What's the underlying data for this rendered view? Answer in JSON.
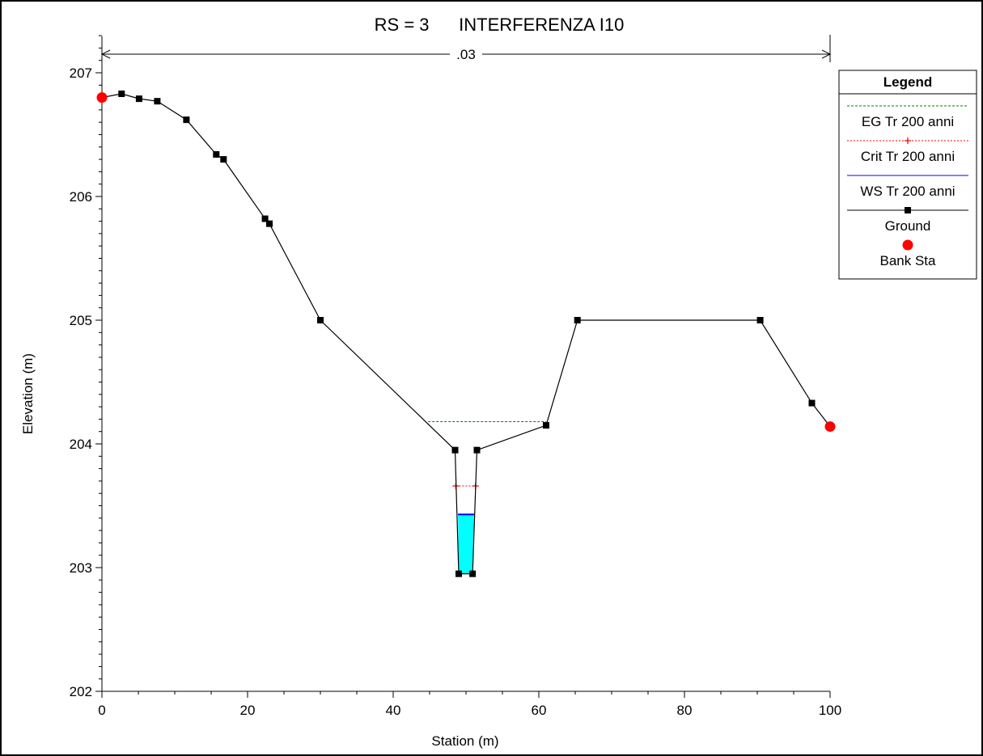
{
  "chart_data": {
    "type": "line",
    "title": "RS = 3      INTERFERENZA I10",
    "xlabel": "Station (m)",
    "ylabel": "Elevation (m)",
    "xlim": [
      0,
      100
    ],
    "ylim": [
      202,
      207.3
    ],
    "x_ticks": [
      0,
      20,
      40,
      60,
      80,
      100
    ],
    "y_ticks": [
      202,
      203,
      204,
      205,
      206,
      207
    ],
    "grid": false,
    "manning_n": {
      "label": ".03",
      "from": 0,
      "to": 100
    },
    "series": [
      {
        "name": "EG Tr 200 anni",
        "color": "#008000",
        "style": "dashed",
        "points": [
          [
            44.8,
            204.18
          ],
          [
            61.0,
            204.18
          ]
        ]
      },
      {
        "name": "Crit Tr 200 anni",
        "color": "#ff0000",
        "style": "dotted-plus",
        "points": [
          [
            48.6,
            203.66
          ],
          [
            51.3,
            203.66
          ]
        ]
      },
      {
        "name": "WS Tr 200 anni",
        "color": "#0000ff",
        "style": "solid",
        "fill": "#00ffff",
        "points": [
          [
            48.9,
            203.43
          ],
          [
            51.1,
            203.43
          ]
        ],
        "fill_polygon": [
          [
            48.9,
            203.43
          ],
          [
            51.1,
            203.43
          ],
          [
            50.9,
            202.95
          ],
          [
            49.0,
            202.95
          ]
        ]
      },
      {
        "name": "Ground",
        "color": "#000000",
        "style": "solid-square",
        "points": [
          [
            0,
            206.8
          ],
          [
            2.7,
            206.83
          ],
          [
            5.1,
            206.79
          ],
          [
            7.6,
            206.77
          ],
          [
            11.6,
            206.62
          ],
          [
            15.7,
            206.34
          ],
          [
            16.7,
            206.3
          ],
          [
            22.4,
            205.82
          ],
          [
            23.0,
            205.78
          ],
          [
            30.0,
            205.0
          ],
          [
            48.5,
            203.95
          ],
          [
            49.0,
            202.95
          ],
          [
            50.9,
            202.95
          ],
          [
            51.5,
            203.95
          ],
          [
            61.0,
            204.15
          ],
          [
            65.3,
            205.0
          ],
          [
            90.4,
            205.0
          ],
          [
            97.5,
            204.33
          ],
          [
            100,
            204.14
          ]
        ]
      },
      {
        "name": "Bank Sta",
        "color": "#ff0000",
        "style": "circle",
        "points": [
          [
            0,
            206.8
          ],
          [
            100,
            204.14
          ]
        ]
      }
    ],
    "legend": {
      "title": "Legend",
      "position": "top-right",
      "entries": [
        "EG Tr 200 anni",
        "Crit Tr 200 anni",
        "WS Tr 200 anni",
        "Ground",
        "Bank Sta"
      ]
    }
  }
}
